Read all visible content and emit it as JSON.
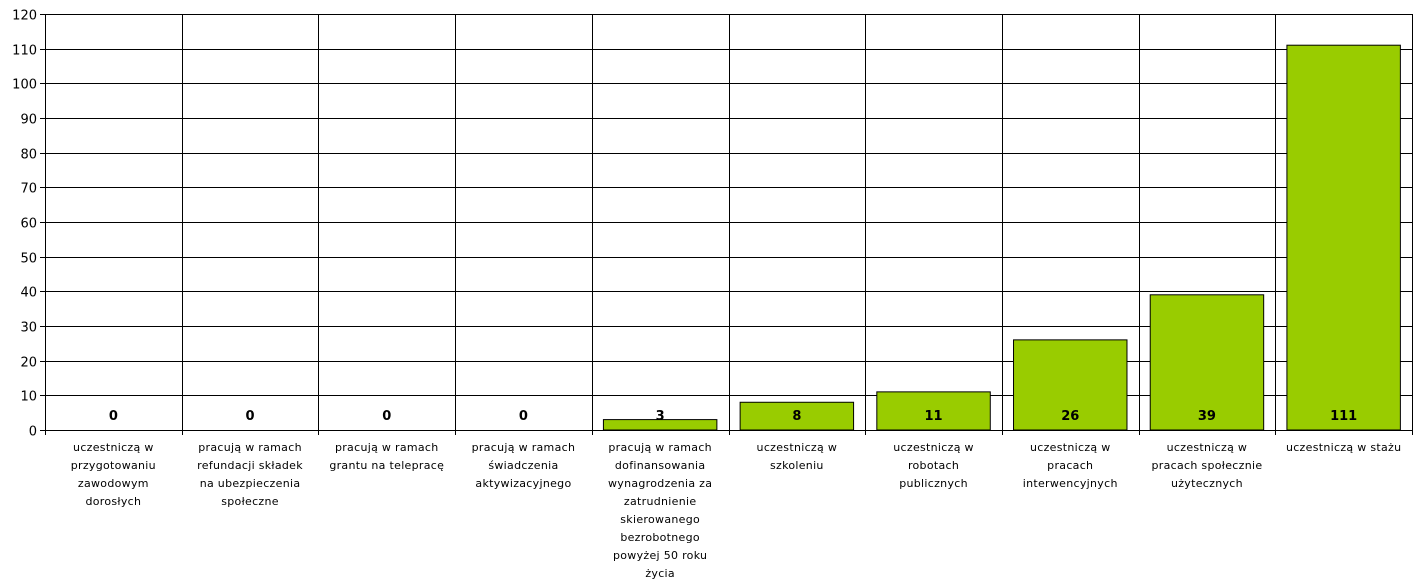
{
  "chart_data": {
    "type": "bar",
    "categories": [
      [
        "uczestniczą w",
        "przygotowaniu",
        "zawodowym",
        "dorosłych"
      ],
      [
        "pracują w ramach",
        "refundacji składek",
        "na ubezpieczenia",
        "społeczne"
      ],
      [
        "pracują w ramach",
        "grantu na telepracę"
      ],
      [
        "pracują w ramach",
        "świadczenia",
        "aktywizacyjnego"
      ],
      [
        "pracują w ramach",
        "dofinansowania",
        "wynagrodzenia za",
        "zatrudnienie",
        "skierowanego",
        "bezrobotnego",
        "powyżej 50 roku",
        "życia"
      ],
      [
        "uczestniczą w",
        "szkoleniu"
      ],
      [
        "uczestniczą w",
        "robotach",
        "publicznych"
      ],
      [
        "uczestniczą w",
        "pracach",
        "interwencyjnych"
      ],
      [
        "uczestniczą w",
        "pracach społecznie",
        "użytecznych"
      ],
      [
        "uczestniczą w stażu"
      ]
    ],
    "values": [
      0,
      0,
      0,
      0,
      3,
      8,
      11,
      26,
      39,
      111
    ],
    "data_labels": [
      "0",
      "0",
      "0",
      "0",
      "3",
      "8",
      "11",
      "26",
      "39",
      "111"
    ],
    "ylim": [
      0,
      120
    ],
    "yticks": [
      "0",
      "10",
      "20",
      "30",
      "40",
      "50",
      "60",
      "70",
      "80",
      "90",
      "100",
      "110",
      "120"
    ],
    "grid": true,
    "bar_color": "#99CC00",
    "bar_edge_color": "#000000",
    "title": "",
    "xlabel": "",
    "ylabel": ""
  }
}
